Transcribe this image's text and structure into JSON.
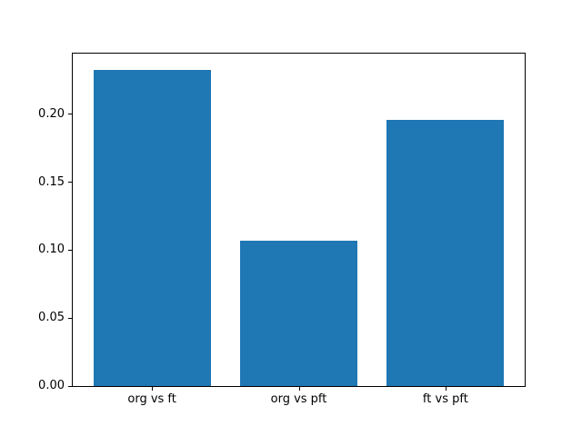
{
  "chart_data": {
    "type": "bar",
    "title": "",
    "xlabel": "",
    "ylabel": "",
    "categories": [
      "org vs ft",
      "org vs pft",
      "ft vs pft"
    ],
    "values": [
      0.233,
      0.107,
      0.196
    ],
    "yticks": [
      0,
      0.05,
      0.1,
      0.15,
      0.2
    ],
    "ytick_labels": [
      "0.00",
      "0.05",
      "0.10",
      "0.15",
      "0.20"
    ],
    "ylim": [
      0,
      0.2447
    ],
    "grid": false,
    "legend": null,
    "bar_color": "#1f77b4",
    "spine_color": "#000000",
    "text_color": "#000000",
    "background": "#ffffff"
  }
}
